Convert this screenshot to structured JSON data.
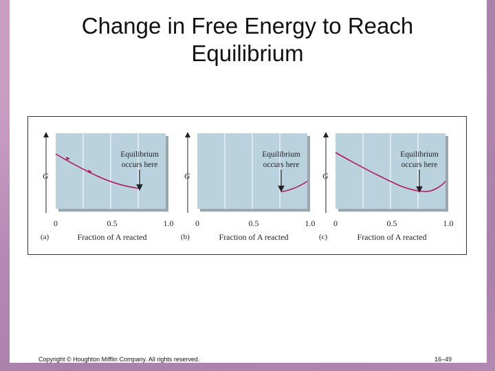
{
  "slide": {
    "title_line1": "Change in Free Energy to Reach",
    "title_line2": "Equilibrium",
    "copyright": "Copyright © Houghton Mifflin Company. All rights reserved.",
    "page_number": "16–49"
  },
  "figure": {
    "panels": [
      {
        "label": "(a)",
        "y_axis": "G",
        "x_label": "Fraction of A reacted",
        "annotation_line1": "Equilibrium",
        "annotation_line2": "occurs here",
        "tick_0": "0",
        "tick_05": "0.5",
        "tick_1": "1.0"
      },
      {
        "label": "(b)",
        "y_axis": "G",
        "x_label": "Fraction of A reacted",
        "annotation_line1": "Equilibrium",
        "annotation_line2": "occurs here",
        "tick_0": "0",
        "tick_05": "0.5",
        "tick_1": "1.0"
      },
      {
        "label": "(c)",
        "y_axis": "G",
        "x_label": "Fraction of A reacted",
        "annotation_line1": "Equilibrium",
        "annotation_line2": "occurs here",
        "tick_0": "0",
        "tick_05": "0.5",
        "tick_1": "1.0"
      }
    ],
    "colors": {
      "panel_bg": "#b9d2de",
      "curve": "#b0175a",
      "grid": "#e8f0f4"
    }
  }
}
